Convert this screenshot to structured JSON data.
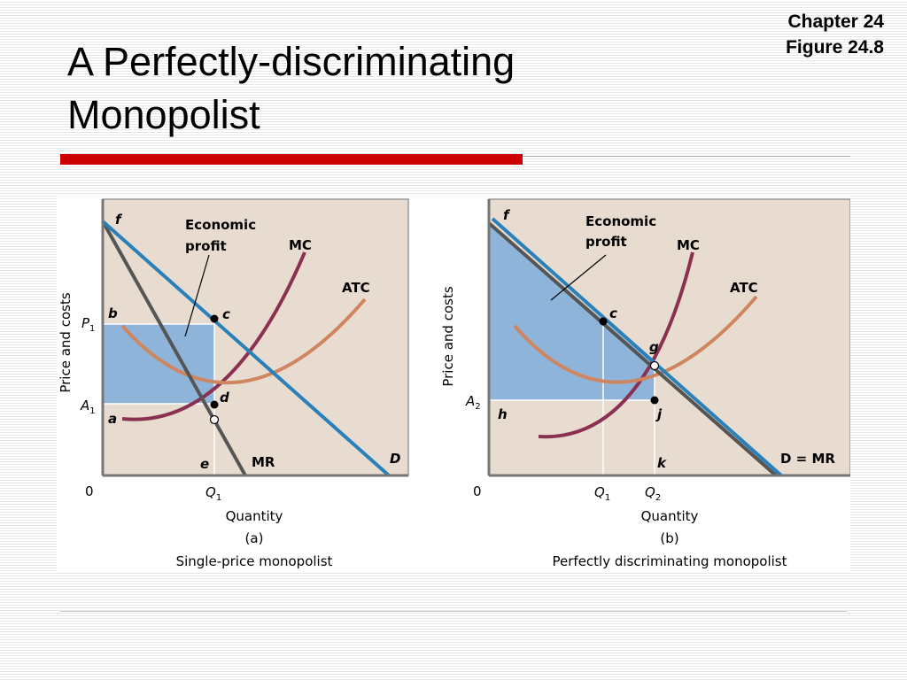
{
  "slide": {
    "title_line1": "A Perfectly-discriminating",
    "title_line2": "Monopolist",
    "chapter": "Chapter 24",
    "figure": "Figure 24.8"
  },
  "colors": {
    "background_panel": "#e8dcd0",
    "profit_fill": "#8fb4d9",
    "demand_line": "#2a80b9",
    "mr_line": "#555555",
    "mc_curve": "#8a3050",
    "atc_curve": "#cf8660",
    "title_rule": "#cc0000"
  },
  "panel_a": {
    "ylabel": "Price and costs",
    "xlabel": "Quantity",
    "origin": "0",
    "letter": "(a)",
    "caption": "Single-price monopolist",
    "econ_profit_line1": "Economic",
    "econ_profit_line2": "profit",
    "mc": "MC",
    "atc": "ATC",
    "mr": "MR",
    "d": "D",
    "f": "f",
    "b": "b",
    "c": "c",
    "d_point": "d",
    "a": "a",
    "e": "e",
    "p1_main": "P",
    "p1_sub": "1",
    "a1_main": "A",
    "a1_sub": "1",
    "q1_main": "Q",
    "q1_sub": "1"
  },
  "panel_b": {
    "ylabel": "Price and costs",
    "xlabel": "Quantity",
    "origin": "0",
    "letter": "(b)",
    "caption": "Perfectly discriminating monopolist",
    "econ_profit_line1": "Economic",
    "econ_profit_line2": "profit",
    "mc": "MC",
    "atc": "ATC",
    "dmr": "D = MR",
    "f": "f",
    "c": "c",
    "g": "g",
    "h": "h",
    "j": "j",
    "k": "k",
    "a2_main": "A",
    "a2_sub": "2",
    "q1_main": "Q",
    "q1_sub": "1",
    "q2_main": "Q",
    "q2_sub": "2"
  }
}
